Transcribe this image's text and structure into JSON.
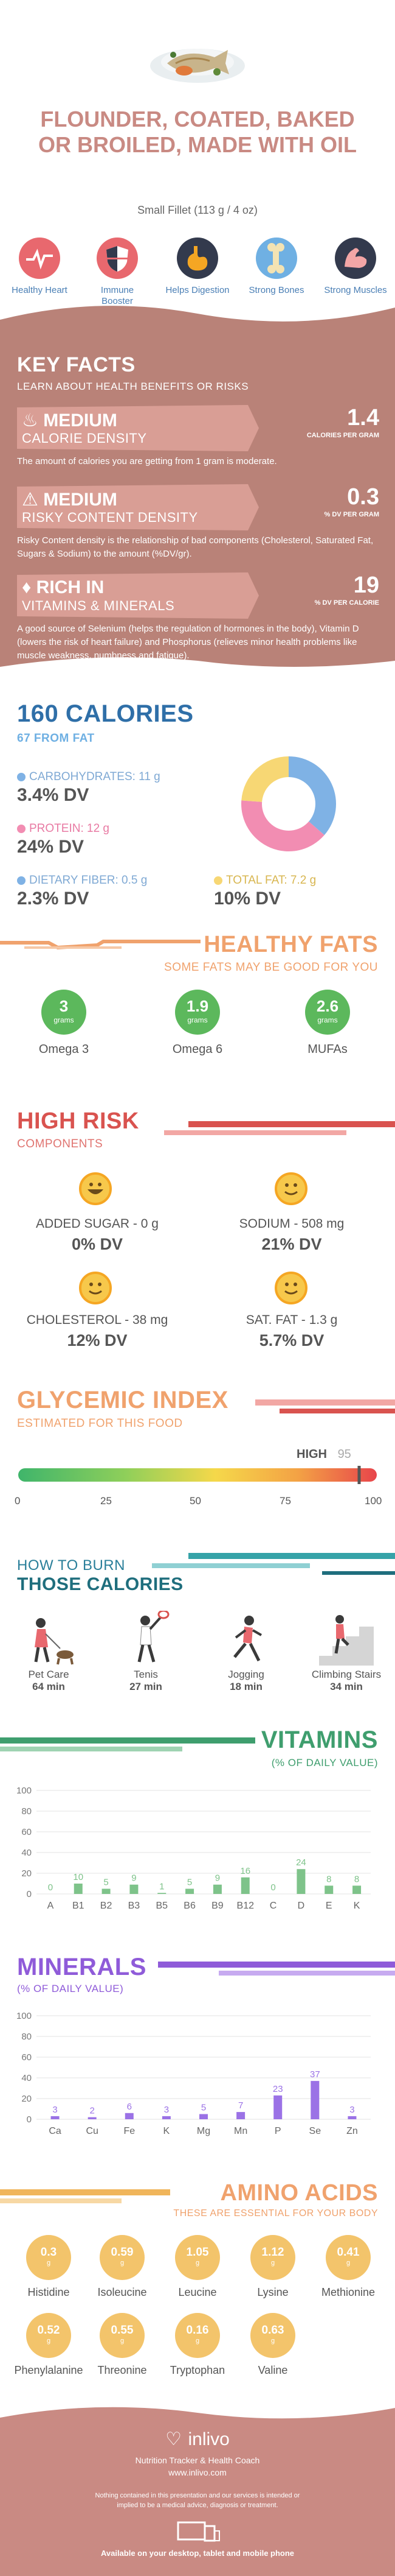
{
  "header": {
    "title": "FLOUNDER, COATED, BAKED OR BROILED, MADE WITH OIL",
    "serving": "Small Fillet (113 g / 4 oz)"
  },
  "benefits": [
    {
      "label": "Healthy Heart",
      "icon": "heart-ecg-icon",
      "color": "#e8686e"
    },
    {
      "label": "Immune Booster",
      "icon": "shield-icon",
      "color": "#e8686e"
    },
    {
      "label": "Helps Digestion",
      "icon": "stomach-icon",
      "color": "#333a4d"
    },
    {
      "label": "Strong Bones",
      "icon": "bone-icon",
      "color": "#6fb0e3"
    },
    {
      "label": "Strong Muscles",
      "icon": "muscle-icon",
      "color": "#333a4d"
    }
  ],
  "key_facts": {
    "title": "KEY FACTS",
    "subtitle": "LEARN ABOUT HEALTH BENEFITS OR RISKS",
    "items": [
      {
        "level": "MEDIUM",
        "label": "CALORIE DENSITY",
        "value": "1.4",
        "unit": "CALORIES PER GRAM",
        "desc": "The amount of calories you are getting from 1 gram is moderate."
      },
      {
        "level": "MEDIUM",
        "label": "RISKY CONTENT DENSITY",
        "value": "0.3",
        "unit": "% DV PER GRAM",
        "desc": "Risky Content density is the relationship of bad components (Cholesterol, Saturated Fat, Sugars & Sodium) to the amount (%DV/gr)."
      },
      {
        "level": "RICH IN",
        "label": "VITAMINS & MINERALS",
        "value": "19",
        "unit": "% DV PER CALORIE",
        "desc": "A good source of Selenium (helps the regulation of hormones in the body), Vitamin D (lowers the risk of heart failure) and Phosphorus (relieves minor health problems like muscle weakness, numbness and fatigue)."
      }
    ]
  },
  "calories": {
    "title": "160 CALORIES",
    "subtitle": "67 FROM FAT",
    "macros": [
      {
        "label": "CARBOHYDRATES: 11 g",
        "dv": "3.4% DV",
        "color": "#7fb2e5"
      },
      {
        "label": "PROTEIN: 12 g",
        "dv": "24% DV",
        "color": "#f28db2"
      },
      {
        "label": "DIETARY FIBER: 0.5 g",
        "dv": "2.3% DV",
        "color": "#7fb2e5"
      },
      {
        "label": "TOTAL FAT: 7.2 g",
        "dv": "10% DV",
        "color": "#f7d774"
      }
    ],
    "donut": [
      {
        "name": "Carbohydrates",
        "value": 11,
        "color": "#7fb2e5"
      },
      {
        "name": "Protein",
        "value": 12,
        "color": "#f28db2"
      },
      {
        "name": "Fat",
        "value": 7.2,
        "color": "#f7d774"
      }
    ]
  },
  "healthy_fats": {
    "title": "HEALTHY FATS",
    "subtitle": "SOME FATS MAY BE GOOD FOR YOU",
    "items": [
      {
        "value": "3",
        "unit": "grams",
        "label": "Omega 3"
      },
      {
        "value": "1.9",
        "unit": "grams",
        "label": "Omega 6"
      },
      {
        "value": "2.6",
        "unit": "grams",
        "label": "MUFAs"
      }
    ]
  },
  "high_risk": {
    "title": "HIGH RISK",
    "subtitle": "COMPONENTS",
    "items": [
      {
        "label": "ADDED SUGAR - 0 g",
        "dv": "0% DV",
        "face": "very-happy"
      },
      {
        "label": "SODIUM - 508 mg",
        "dv": "21% DV",
        "face": "happy"
      },
      {
        "label": "CHOLESTEROL - 38 mg",
        "dv": "12% DV",
        "face": "happy"
      },
      {
        "label": "SAT. FAT - 1.3 g",
        "dv": "5.7% DV",
        "face": "happy"
      }
    ]
  },
  "glycemic": {
    "title": "GLYCEMIC INDEX",
    "subtitle": "ESTIMATED FOR THIS FOOD",
    "level": "HIGH",
    "value": "95",
    "ticks": [
      "0",
      "25",
      "50",
      "75",
      "100"
    ]
  },
  "burn": {
    "title1": "HOW TO BURN",
    "title2": "THOSE CALORIES",
    "items": [
      {
        "label": "Pet Care",
        "time": "64 min"
      },
      {
        "label": "Tenis",
        "time": "27 min"
      },
      {
        "label": "Jogging",
        "time": "18 min"
      },
      {
        "label": "Climbing Stairs",
        "time": "34 min"
      }
    ]
  },
  "vitamins": {
    "title": "VITAMINS",
    "subtitle": "(% OF DAILY VALUE)"
  },
  "minerals": {
    "title": "MINERALS",
    "subtitle": "(% OF DAILY VALUE)"
  },
  "chart_data": [
    {
      "type": "bar",
      "categories": [
        "A",
        "B1",
        "B2",
        "B3",
        "B5",
        "B6",
        "B9",
        "B12",
        "C",
        "D",
        "E",
        "K"
      ],
      "values": [
        0,
        10,
        5,
        9,
        1,
        5,
        9,
        16,
        0,
        24,
        8,
        8
      ],
      "title": "VITAMINS",
      "ylim": [
        0,
        100
      ],
      "yticks": [
        "0",
        "20",
        "40",
        "60",
        "80",
        "100"
      ],
      "color": "#7ec38a"
    },
    {
      "type": "bar",
      "categories": [
        "Ca",
        "Cu",
        "Fe",
        "K",
        "Mg",
        "Mn",
        "P",
        "Se",
        "Zn"
      ],
      "values": [
        3,
        2,
        6,
        3,
        5,
        7,
        23,
        37,
        3
      ],
      "title": "MINERALS",
      "ylim": [
        0,
        100
      ],
      "yticks": [
        "0",
        "20",
        "40",
        "60",
        "80",
        "100"
      ],
      "color": "#9b72e6"
    }
  ],
  "amino": {
    "title": "AMINO ACIDS",
    "subtitle": "THESE ARE ESSENTIAL FOR YOUR BODY",
    "unit": "g",
    "items": [
      {
        "value": "0.3",
        "label": "Histidine"
      },
      {
        "value": "0.59",
        "label": "Isoleucine"
      },
      {
        "value": "1.05",
        "label": "Leucine"
      },
      {
        "value": "1.12",
        "label": "Lysine"
      },
      {
        "value": "0.41",
        "label": "Methionine"
      },
      {
        "value": "0.52",
        "label": "Phenylalanine"
      },
      {
        "value": "0.55",
        "label": "Threonine"
      },
      {
        "value": "0.16",
        "label": "Tryptophan"
      },
      {
        "value": "0.63",
        "label": "Valine"
      }
    ]
  },
  "footer": {
    "brand": "inlivo",
    "tagline": "Nutrition Tracker & Health Coach",
    "url": "www.inlivo.com",
    "disclaimer": "Nothing contained in this presentation and our services is intended or implied to be a medical advice, diagnosis or treatment.",
    "available": "Available on your desktop, tablet and mobile phone"
  },
  "colors": {
    "brand": "#c98a83",
    "keyfacts_bg": "#b98278",
    "blue": "#2f6fa8",
    "orange": "#f0a26d",
    "red": "#d9534f",
    "teal": "#36a3a8",
    "green": "#3f9e6e",
    "purple": "#8f5bd9"
  }
}
